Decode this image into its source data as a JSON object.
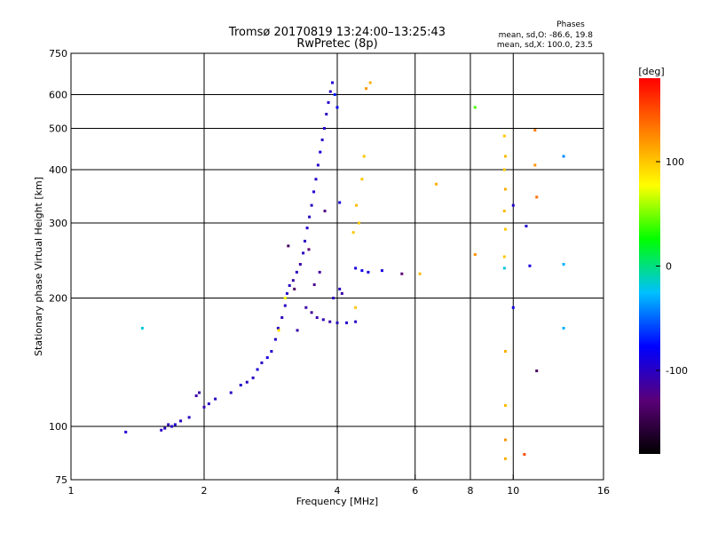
{
  "chart_data": {
    "type": "scatter",
    "title": "Tromsø 20170819 13:24:00–13:25:43",
    "subtitle": "RwPretec (8p)",
    "xlabel": "Frequency [MHz]",
    "ylabel": "Stationary phase Virtual Height [km]",
    "xscale": "log",
    "yscale": "log",
    "xlim": [
      1,
      16
    ],
    "ylim": [
      75,
      750
    ],
    "xticks": [
      1,
      2,
      4,
      6,
      8,
      10,
      16
    ],
    "yticks": [
      75,
      100,
      200,
      300,
      400,
      500,
      600,
      750
    ],
    "grid": true,
    "stats": {
      "heading": "Phases",
      "line_o": "mean, sd,O: -86.6, 19.8",
      "line_x": "mean, sd,X: 100.0, 23.5"
    },
    "colorbar": {
      "label": "[deg]",
      "range": [
        -180,
        180
      ],
      "ticks": [
        100,
        0,
        -100
      ],
      "colors": [
        "#000000",
        "#5a0078",
        "#0000ff",
        "#00c0ff",
        "#00ff00",
        "#ffff00",
        "#ff8000",
        "#ff0000"
      ]
    },
    "series": [
      {
        "points": [
          [
            1.33,
            97,
            -95
          ],
          [
            1.6,
            98,
            -100
          ],
          [
            1.63,
            99,
            -100
          ],
          [
            1.66,
            101,
            -105
          ],
          [
            1.69,
            100,
            -100
          ],
          [
            1.72,
            101,
            -95
          ],
          [
            1.77,
            103,
            -100
          ],
          [
            1.85,
            105,
            -100
          ],
          [
            1.92,
            118,
            -110
          ],
          [
            1.95,
            120,
            -110
          ],
          [
            2.0,
            111,
            -105
          ],
          [
            2.05,
            113,
            -100
          ],
          [
            2.12,
            116,
            -100
          ],
          [
            2.3,
            120,
            -100
          ],
          [
            2.42,
            125,
            -95
          ],
          [
            2.5,
            127,
            -100
          ],
          [
            2.58,
            130,
            -100
          ],
          [
            2.64,
            136,
            -95
          ],
          [
            2.7,
            141,
            -100
          ],
          [
            2.78,
            145,
            -90
          ],
          [
            2.84,
            150,
            -95
          ],
          [
            2.9,
            160,
            -100
          ],
          [
            2.94,
            170,
            -100
          ],
          [
            3.0,
            180,
            -105
          ],
          [
            3.05,
            192,
            -100
          ],
          [
            3.08,
            205,
            -95
          ],
          [
            3.12,
            214,
            -100
          ],
          [
            3.18,
            220,
            -110
          ],
          [
            3.24,
            230,
            -100
          ],
          [
            3.3,
            240,
            -110
          ],
          [
            3.35,
            255,
            -100
          ],
          [
            3.38,
            272,
            -100
          ],
          [
            3.42,
            292,
            -95
          ],
          [
            3.46,
            310,
            -100
          ],
          [
            3.5,
            330,
            -100
          ],
          [
            3.54,
            355,
            -95
          ],
          [
            3.58,
            380,
            -100
          ],
          [
            3.62,
            410,
            -100
          ],
          [
            3.66,
            440,
            -90
          ],
          [
            3.7,
            470,
            -100
          ],
          [
            3.74,
            500,
            -95
          ],
          [
            3.78,
            540,
            -100
          ],
          [
            3.82,
            575,
            -95
          ],
          [
            3.86,
            610,
            -100
          ],
          [
            3.9,
            640,
            -95
          ],
          [
            3.95,
            600,
            -70
          ],
          [
            4.0,
            560,
            -80
          ],
          [
            3.6,
            180,
            -110
          ],
          [
            3.72,
            178,
            -105
          ],
          [
            3.85,
            176,
            -110
          ],
          [
            4.0,
            175,
            -100
          ],
          [
            4.2,
            175,
            -95
          ],
          [
            4.4,
            176,
            -100
          ],
          [
            3.4,
            190,
            -110
          ],
          [
            3.5,
            185,
            -115
          ],
          [
            3.92,
            200,
            -100
          ],
          [
            4.05,
            210,
            -100
          ],
          [
            4.1,
            205,
            -110
          ],
          [
            3.55,
            215,
            -120
          ],
          [
            3.65,
            230,
            -115
          ],
          [
            4.4,
            235,
            -90
          ],
          [
            4.55,
            232,
            -85
          ],
          [
            4.7,
            230,
            -90
          ],
          [
            5.05,
            232,
            -90
          ],
          [
            5.6,
            228,
            -130
          ],
          [
            3.2,
            210,
            -135
          ],
          [
            3.45,
            260,
            -130
          ],
          [
            3.75,
            320,
            -125
          ],
          [
            4.35,
            285,
            100
          ],
          [
            4.48,
            300,
            100
          ],
          [
            4.42,
            330,
            105
          ],
          [
            4.55,
            380,
            100
          ],
          [
            4.6,
            430,
            100
          ],
          [
            4.75,
            640,
            110
          ],
          [
            4.65,
            620,
            120
          ],
          [
            6.15,
            228,
            105
          ],
          [
            6.7,
            370,
            110
          ],
          [
            8.2,
            560,
            40
          ],
          [
            8.2,
            253,
            120
          ],
          [
            9.55,
            480,
            100
          ],
          [
            9.6,
            430,
            105
          ],
          [
            9.55,
            400,
            100
          ],
          [
            9.6,
            360,
            110
          ],
          [
            9.55,
            320,
            105
          ],
          [
            9.6,
            290,
            100
          ],
          [
            9.55,
            250,
            100
          ],
          [
            9.6,
            150,
            110
          ],
          [
            9.6,
            112,
            105
          ],
          [
            9.6,
            93,
            120
          ],
          [
            9.6,
            84,
            110
          ],
          [
            9.55,
            235,
            -20
          ],
          [
            10.0,
            330,
            -95
          ],
          [
            10.0,
            190,
            -85
          ],
          [
            11.2,
            495,
            130
          ],
          [
            11.2,
            410,
            120
          ],
          [
            11.3,
            345,
            135
          ],
          [
            10.7,
            295,
            -95
          ],
          [
            10.9,
            238,
            -90
          ],
          [
            11.3,
            135,
            -140
          ],
          [
            10.6,
            86,
            150
          ],
          [
            13.0,
            430,
            -40
          ],
          [
            13.0,
            240,
            -30
          ],
          [
            13.0,
            170,
            -30
          ],
          [
            1.45,
            170,
            -20
          ],
          [
            2.95,
            168,
            90
          ],
          [
            3.05,
            200,
            80
          ],
          [
            4.4,
            190,
            100
          ],
          [
            3.1,
            265,
            -140
          ],
          [
            4.05,
            335,
            -90
          ],
          [
            3.25,
            168,
            -110
          ]
        ]
      }
    ]
  }
}
